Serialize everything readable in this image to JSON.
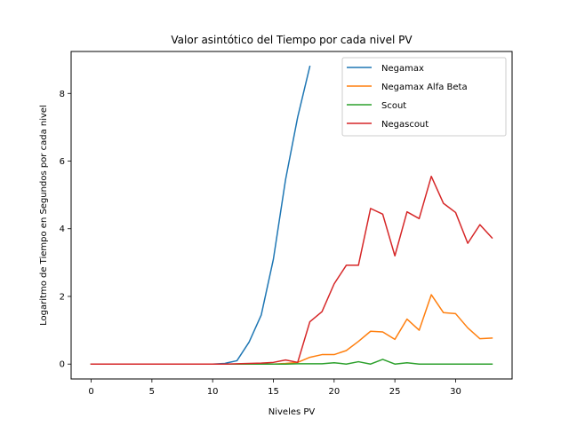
{
  "chart_data": {
    "type": "line",
    "title": "Valor asintótico del Tiempo por cada nivel PV",
    "xlabel": "Niveles PV",
    "ylabel": "Logaritmo de Tiempo en Segundos por cada nivel",
    "xlim": [
      -1.65,
      34.65
    ],
    "ylim": [
      -0.44,
      9.24
    ],
    "xticks": [
      0,
      5,
      10,
      15,
      20,
      25,
      30
    ],
    "yticks": [
      0,
      2,
      4,
      6,
      8
    ],
    "grid": false,
    "legend_position": "top-right",
    "series": [
      {
        "name": "Negamax",
        "color": "#1f77b4",
        "x": [
          0,
          1,
          2,
          3,
          4,
          5,
          6,
          7,
          8,
          9,
          10,
          11,
          12,
          13,
          14,
          15,
          16,
          17,
          18
        ],
        "y": [
          0,
          0,
          0,
          0,
          0,
          0,
          0,
          0,
          0,
          0,
          0,
          0.02,
          0.1,
          0.65,
          1.45,
          3.1,
          5.45,
          7.3,
          8.8
        ]
      },
      {
        "name": "Negamax Alfa Beta",
        "color": "#ff7f0e",
        "x": [
          0,
          1,
          2,
          3,
          4,
          5,
          6,
          7,
          8,
          9,
          10,
          11,
          12,
          13,
          14,
          15,
          16,
          17,
          18,
          19,
          20,
          21,
          22,
          23,
          24,
          25,
          26,
          27,
          28,
          29,
          30,
          31,
          32,
          33
        ],
        "y": [
          0,
          0,
          0,
          0,
          0,
          0,
          0,
          0,
          0,
          0,
          0,
          0,
          0,
          0,
          0,
          0,
          0.02,
          0.05,
          0.2,
          0.28,
          0.28,
          0.4,
          0.67,
          0.97,
          0.95,
          0.73,
          1.33,
          1.0,
          2.05,
          1.52,
          1.49,
          1.07,
          0.75,
          0.77
        ]
      },
      {
        "name": "Scout",
        "color": "#2ca02c",
        "x": [
          0,
          1,
          2,
          3,
          4,
          5,
          6,
          7,
          8,
          9,
          10,
          11,
          12,
          13,
          14,
          15,
          16,
          17,
          18,
          19,
          20,
          21,
          22,
          23,
          24,
          25,
          26,
          27,
          28,
          29,
          30,
          31,
          32,
          33
        ],
        "y": [
          0,
          0,
          0,
          0,
          0,
          0,
          0,
          0,
          0,
          0,
          0,
          0,
          0,
          0,
          0,
          0,
          0,
          0.01,
          0.01,
          0.01,
          0.04,
          0.0,
          0.07,
          0.0,
          0.14,
          0.0,
          0.04,
          0.0,
          0.0,
          0.0,
          0.0,
          0.0,
          0.0,
          0.0
        ]
      },
      {
        "name": "Negascout",
        "color": "#d62728",
        "x": [
          0,
          1,
          2,
          3,
          4,
          5,
          6,
          7,
          8,
          9,
          10,
          11,
          12,
          13,
          14,
          15,
          16,
          17,
          18,
          19,
          20,
          21,
          22,
          23,
          24,
          25,
          26,
          27,
          28,
          29,
          30,
          31,
          32,
          33
        ],
        "y": [
          0,
          0,
          0,
          0,
          0,
          0,
          0,
          0,
          0,
          0,
          0,
          0,
          0.01,
          0.02,
          0.03,
          0.05,
          0.12,
          0.05,
          1.25,
          1.55,
          2.37,
          2.92,
          2.92,
          4.6,
          4.43,
          3.2,
          4.5,
          4.3,
          5.55,
          4.75,
          4.48,
          3.57,
          4.12,
          3.73
        ]
      }
    ]
  }
}
